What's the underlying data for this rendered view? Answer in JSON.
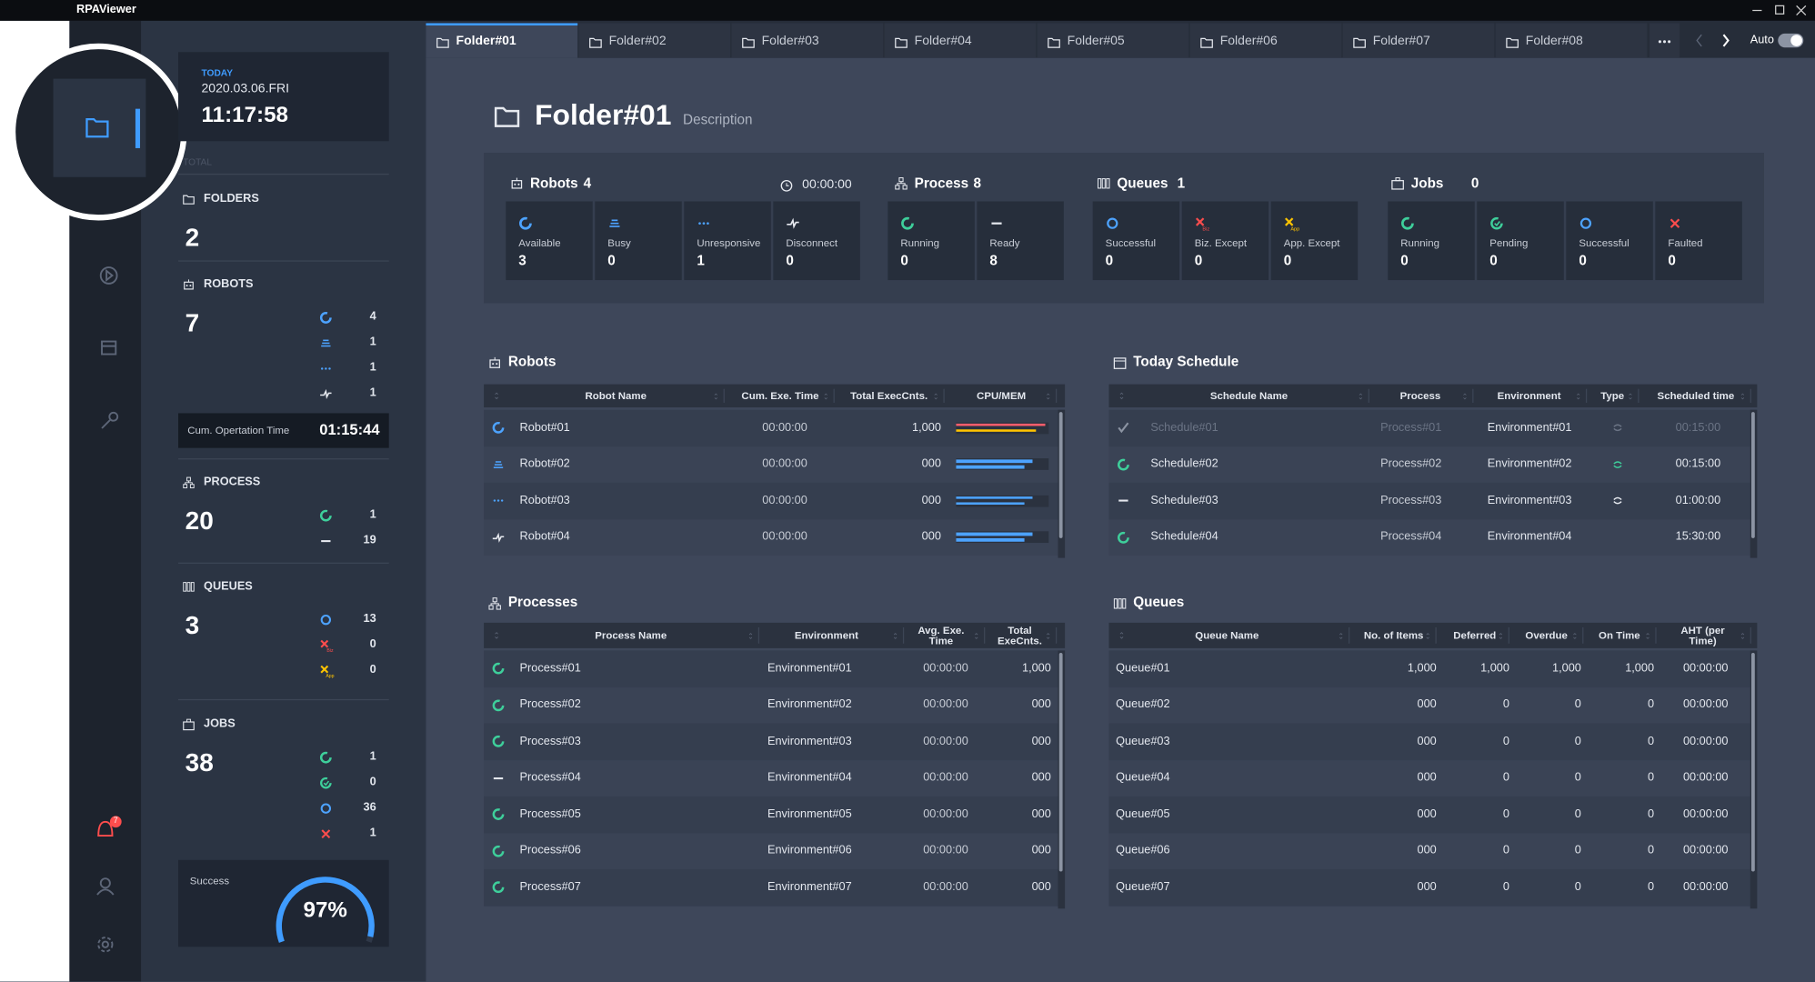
{
  "window": {
    "title": "RPAViewer"
  },
  "tabs": [
    "Folder#01",
    "Folder#02",
    "Folder#03",
    "Folder#04",
    "Folder#05",
    "Folder#06",
    "Folder#07",
    "Folder#08"
  ],
  "auto_label": "Auto",
  "notification_count": 7,
  "sidebar": {
    "today": {
      "label": "TODAY",
      "date": "2020.03.06.FRI",
      "time": "11:17:58"
    },
    "total_label": "TOTAL",
    "folders": {
      "label": "FOLDERS",
      "count": 2
    },
    "robots": {
      "label": "ROBOTS",
      "count": 7,
      "breakdown": [
        4,
        1,
        1,
        1
      ],
      "cum_label": "Cum. Opertation Time",
      "cum_time": "01:15:44"
    },
    "process": {
      "label": "PROCESS",
      "count": 20,
      "breakdown": [
        1,
        19
      ]
    },
    "queues": {
      "label": "QUEUES",
      "count": 3,
      "breakdown": [
        13,
        0,
        0
      ]
    },
    "jobs": {
      "label": "JOBS",
      "count": 38,
      "breakdown": [
        1,
        0,
        36,
        1
      ]
    },
    "success": {
      "label": "Success",
      "value": 97,
      "value_label": "97%",
      "scale": [
        0,
        100
      ]
    }
  },
  "header": {
    "title": "Folder#01",
    "description": "Description"
  },
  "icon_texts": {
    "biz": "Biz",
    "app": "App"
  },
  "summary": {
    "robots": {
      "label": "Robots",
      "count": 4,
      "time": "00:00:00",
      "items": [
        {
          "label": "Available",
          "value": 3
        },
        {
          "label": "Busy",
          "value": 0
        },
        {
          "label": "Unresponsive",
          "value": 1
        },
        {
          "label": "Disconnect",
          "value": 0
        }
      ]
    },
    "process": {
      "label": "Process",
      "count": 8,
      "items": [
        {
          "label": "Running",
          "value": 0
        },
        {
          "label": "Ready",
          "value": 8
        }
      ]
    },
    "queues": {
      "label": "Queues",
      "count": 1,
      "items": [
        {
          "label": "Successful",
          "value": 0
        },
        {
          "label": "Biz. Except",
          "value": 0
        },
        {
          "label": "App. Except",
          "value": 0
        }
      ]
    },
    "jobs": {
      "label": "Jobs",
      "count": 0,
      "items": [
        {
          "label": "Running",
          "value": 0
        },
        {
          "label": "Pending",
          "value": 0
        },
        {
          "label": "Successful",
          "value": 0
        },
        {
          "label": "Faulted",
          "value": 0
        }
      ]
    }
  },
  "robots_table": {
    "title": "Robots",
    "columns": [
      "Robot Name",
      "Cum. Exe. Time",
      "Total ExecCnts.",
      "CPU/MEM"
    ],
    "cpu_mem_scale": [
      0,
      100
    ],
    "rows": [
      {
        "name": "Robot#01",
        "cum_time": "00:00:00",
        "exec_count": "1,000",
        "cpu": 96,
        "mem": 86
      },
      {
        "name": "Robot#02",
        "cum_time": "00:00:00",
        "exec_count": "000",
        "cpu": 82,
        "mem": 74
      },
      {
        "name": "Robot#03",
        "cum_time": "00:00:00",
        "exec_count": "000",
        "cpu": 82,
        "mem": 74
      },
      {
        "name": "Robot#04",
        "cum_time": "00:00:00",
        "exec_count": "000",
        "cpu": 82,
        "mem": 74
      }
    ]
  },
  "schedule_table": {
    "title": "Today Schedule",
    "columns": [
      "Schedule Name",
      "Process",
      "Environment",
      "Type",
      "Scheduled time"
    ],
    "rows": [
      {
        "name": "Schedule#01",
        "process": "Process#01",
        "environment": "Environment#01",
        "time": "00:15:00"
      },
      {
        "name": "Schedule#02",
        "process": "Process#02",
        "environment": "Environment#02",
        "time": "00:15:00"
      },
      {
        "name": "Schedule#03",
        "process": "Process#03",
        "environment": "Environment#03",
        "time": "01:00:00"
      },
      {
        "name": "Schedule#04",
        "process": "Process#04",
        "environment": "Environment#04",
        "time": "15:30:00"
      }
    ]
  },
  "processes_table": {
    "title": "Processes",
    "columns": [
      "Process Name",
      "Environment",
      "Avg. Exe. Time",
      "Total ExeCnts."
    ],
    "rows": [
      {
        "name": "Process#01",
        "environment": "Environment#01",
        "avg_time": "00:00:00",
        "exec_count": "1,000"
      },
      {
        "name": "Process#02",
        "environment": "Environment#02",
        "avg_time": "00:00:00",
        "exec_count": "000"
      },
      {
        "name": "Process#03",
        "environment": "Environment#03",
        "avg_time": "00:00:00",
        "exec_count": "000"
      },
      {
        "name": "Process#04",
        "environment": "Environment#04",
        "avg_time": "00:00:00",
        "exec_count": "000"
      },
      {
        "name": "Process#05",
        "environment": "Environment#05",
        "avg_time": "00:00:00",
        "exec_count": "000"
      },
      {
        "name": "Process#06",
        "environment": "Environment#06",
        "avg_time": "00:00:00",
        "exec_count": "000"
      },
      {
        "name": "Process#07",
        "environment": "Environment#07",
        "avg_time": "00:00:00",
        "exec_count": "000"
      }
    ]
  },
  "queues_table": {
    "title": "Queues",
    "columns": [
      "Queue Name",
      "No. of Items",
      "Deferred",
      "Overdue",
      "On Time",
      "AHT (per Time)"
    ],
    "rows": [
      {
        "name": "Queue#01",
        "items": "1,000",
        "deferred": "1,000",
        "overdue": "1,000",
        "on_time": "1,000",
        "aht": "00:00:00"
      },
      {
        "name": "Queue#02",
        "items": "000",
        "deferred": "0",
        "overdue": "0",
        "on_time": "0",
        "aht": "00:00:00"
      },
      {
        "name": "Queue#03",
        "items": "000",
        "deferred": "0",
        "overdue": "0",
        "on_time": "0",
        "aht": "00:00:00"
      },
      {
        "name": "Queue#04",
        "items": "000",
        "deferred": "0",
        "overdue": "0",
        "on_time": "0",
        "aht": "00:00:00"
      },
      {
        "name": "Queue#05",
        "items": "000",
        "deferred": "0",
        "overdue": "0",
        "on_time": "0",
        "aht": "00:00:00"
      },
      {
        "name": "Queue#06",
        "items": "000",
        "deferred": "0",
        "overdue": "0",
        "on_time": "0",
        "aht": "00:00:00"
      },
      {
        "name": "Queue#07",
        "items": "000",
        "deferred": "0",
        "overdue": "0",
        "on_time": "0",
        "aht": "00:00:00"
      }
    ]
  }
}
